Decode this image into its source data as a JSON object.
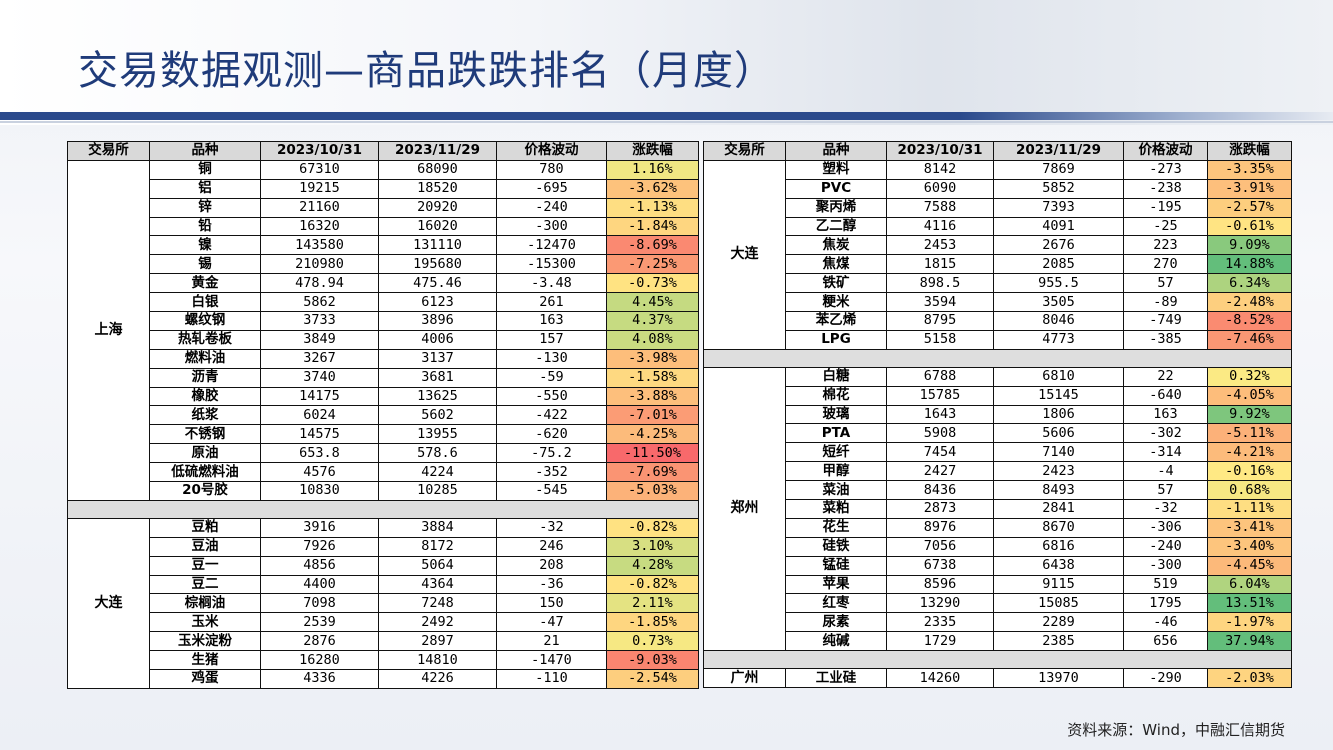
{
  "title": "交易数据观测—商品跌跌排名（月度）",
  "source": "资料来源：Wind，中融汇信期货",
  "colors": {
    "title": "#1f3b7a",
    "bar": "#2b4a8c",
    "header_bg": "#d9d9d9",
    "scale_red": "#f8696b",
    "scale_yellow": "#ffeb84",
    "scale_green": "#63be7b"
  },
  "headers": [
    "交易所",
    "品种",
    "2023/10/31",
    "2023/11/29",
    "价格波动",
    "涨跌幅"
  ],
  "left_table": {
    "groups": [
      {
        "exchange": "上海",
        "rows": [
          [
            "铜",
            "67310",
            "68090",
            "780",
            "1.16%"
          ],
          [
            "铝",
            "19215",
            "18520",
            "-695",
            "-3.62%"
          ],
          [
            "锌",
            "21160",
            "20920",
            "-240",
            "-1.13%"
          ],
          [
            "铅",
            "16320",
            "16020",
            "-300",
            "-1.84%"
          ],
          [
            "镍",
            "143580",
            "131110",
            "-12470",
            "-8.69%"
          ],
          [
            "锡",
            "210980",
            "195680",
            "-15300",
            "-7.25%"
          ],
          [
            "黄金",
            "478.94",
            "475.46",
            "-3.48",
            "-0.73%"
          ],
          [
            "白银",
            "5862",
            "6123",
            "261",
            "4.45%"
          ],
          [
            "螺纹钢",
            "3733",
            "3896",
            "163",
            "4.37%"
          ],
          [
            "热轧卷板",
            "3849",
            "4006",
            "157",
            "4.08%"
          ],
          [
            "燃料油",
            "3267",
            "3137",
            "-130",
            "-3.98%"
          ],
          [
            "沥青",
            "3740",
            "3681",
            "-59",
            "-1.58%"
          ],
          [
            "橡胶",
            "14175",
            "13625",
            "-550",
            "-3.88%"
          ],
          [
            "纸浆",
            "6024",
            "5602",
            "-422",
            "-7.01%"
          ],
          [
            "不锈钢",
            "14575",
            "13955",
            "-620",
            "-4.25%"
          ],
          [
            "原油",
            "653.8",
            "578.6",
            "-75.2",
            "-11.50%"
          ],
          [
            "低硫燃料油",
            "4576",
            "4224",
            "-352",
            "-7.69%"
          ],
          [
            "20号胶",
            "10830",
            "10285",
            "-545",
            "-5.03%"
          ]
        ]
      },
      {
        "exchange": "大连",
        "rows": [
          [
            "豆粕",
            "3916",
            "3884",
            "-32",
            "-0.82%"
          ],
          [
            "豆油",
            "7926",
            "8172",
            "246",
            "3.10%"
          ],
          [
            "豆一",
            "4856",
            "5064",
            "208",
            "4.28%"
          ],
          [
            "豆二",
            "4400",
            "4364",
            "-36",
            "-0.82%"
          ],
          [
            "棕榈油",
            "7098",
            "7248",
            "150",
            "2.11%"
          ],
          [
            "玉米",
            "2539",
            "2492",
            "-47",
            "-1.85%"
          ],
          [
            "玉米淀粉",
            "2876",
            "2897",
            "21",
            "0.73%"
          ],
          [
            "生猪",
            "16280",
            "14810",
            "-1470",
            "-9.03%"
          ],
          [
            "鸡蛋",
            "4336",
            "4226",
            "-110",
            "-2.54%"
          ]
        ]
      }
    ]
  },
  "right_table": {
    "groups": [
      {
        "exchange": "大连",
        "rows": [
          [
            "塑料",
            "8142",
            "7869",
            "-273",
            "-3.35%"
          ],
          [
            "PVC",
            "6090",
            "5852",
            "-238",
            "-3.91%"
          ],
          [
            "聚丙烯",
            "7588",
            "7393",
            "-195",
            "-2.57%"
          ],
          [
            "乙二醇",
            "4116",
            "4091",
            "-25",
            "-0.61%"
          ],
          [
            "焦炭",
            "2453",
            "2676",
            "223",
            "9.09%"
          ],
          [
            "焦煤",
            "1815",
            "2085",
            "270",
            "14.88%"
          ],
          [
            "铁矿",
            "898.5",
            "955.5",
            "57",
            "6.34%"
          ],
          [
            "粳米",
            "3594",
            "3505",
            "-89",
            "-2.48%"
          ],
          [
            "苯乙烯",
            "8795",
            "8046",
            "-749",
            "-8.52%"
          ],
          [
            "LPG",
            "5158",
            "4773",
            "-385",
            "-7.46%"
          ]
        ]
      },
      {
        "exchange": "郑州",
        "rows": [
          [
            "白糖",
            "6788",
            "6810",
            "22",
            "0.32%"
          ],
          [
            "棉花",
            "15785",
            "15145",
            "-640",
            "-4.05%"
          ],
          [
            "玻璃",
            "1643",
            "1806",
            "163",
            "9.92%"
          ],
          [
            "PTA",
            "5908",
            "5606",
            "-302",
            "-5.11%"
          ],
          [
            "短纤",
            "7454",
            "7140",
            "-314",
            "-4.21%"
          ],
          [
            "甲醇",
            "2427",
            "2423",
            "-4",
            "-0.16%"
          ],
          [
            "菜油",
            "8436",
            "8493",
            "57",
            "0.68%"
          ],
          [
            "菜粕",
            "2873",
            "2841",
            "-32",
            "-1.11%"
          ],
          [
            "花生",
            "8976",
            "8670",
            "-306",
            "-3.41%"
          ],
          [
            "硅铁",
            "7056",
            "6816",
            "-240",
            "-3.40%"
          ],
          [
            "锰硅",
            "6738",
            "6438",
            "-300",
            "-4.45%"
          ],
          [
            "苹果",
            "8596",
            "9115",
            "519",
            "6.04%"
          ],
          [
            "红枣",
            "13290",
            "15085",
            "1795",
            "13.51%"
          ],
          [
            "尿素",
            "2335",
            "2289",
            "-46",
            "-1.97%"
          ],
          [
            "纯碱",
            "1729",
            "2385",
            "656",
            "37.94%"
          ]
        ]
      },
      {
        "exchange": "广州",
        "rows": [
          [
            "工业硅",
            "14260",
            "13970",
            "-290",
            "-2.03%"
          ]
        ]
      }
    ]
  }
}
